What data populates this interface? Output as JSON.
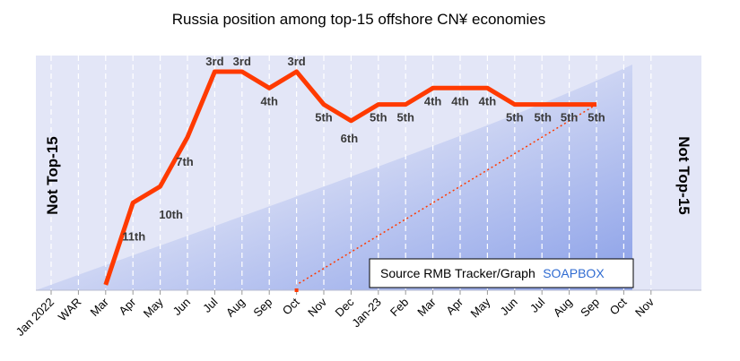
{
  "chart_data": {
    "type": "line",
    "title": "Russia position among top-15 offshore CN¥ economies",
    "categories": [
      "Jan 2022",
      "WAR",
      "Mar",
      "Apr",
      "May",
      "Jun",
      "Jul",
      "Aug",
      "Sep",
      "Oct",
      "Nov",
      "Dec",
      "Jan-23",
      "Feb",
      "Mar",
      "Apr",
      "May",
      "Jun",
      "Jul",
      "Aug",
      "Sep",
      "Oct",
      "Nov"
    ],
    "y_axis": {
      "reversed": true,
      "range": [
        1,
        16
      ],
      "note_out_of_range": "Not Top-15"
    },
    "series": [
      {
        "color": "#ff3a00",
        "points": [
          {
            "x": "Mar",
            "rank": 16,
            "label": ""
          },
          {
            "x": "Apr",
            "rank": 11,
            "label": "11th"
          },
          {
            "x": "May",
            "rank": 10,
            "label": "10th"
          },
          {
            "x": "Jun",
            "rank": 7,
            "label": "7th"
          },
          {
            "x": "Jul",
            "rank": 3,
            "label": "3rd"
          },
          {
            "x": "Aug",
            "rank": 3,
            "label": "3rd"
          },
          {
            "x": "Sep",
            "rank": 4,
            "label": "4th"
          },
          {
            "x": "Oct",
            "rank": 3,
            "label": "3rd"
          },
          {
            "x": "Nov",
            "rank": 5,
            "label": "5th"
          },
          {
            "x": "Dec",
            "rank": 6,
            "label": "6th"
          },
          {
            "x": "Jan-23",
            "rank": 5,
            "label": "5th"
          },
          {
            "x": "Feb",
            "rank": 5,
            "label": "5th"
          },
          {
            "x": "Mar",
            "rank": 4,
            "label": "4th"
          },
          {
            "x": "Apr",
            "rank": 4,
            "label": "4th"
          },
          {
            "x": "May",
            "rank": 4,
            "label": "4th"
          },
          {
            "x": "Jun",
            "rank": 5,
            "label": "5th"
          },
          {
            "x": "Jul",
            "rank": 5,
            "label": "5th"
          },
          {
            "x": "Aug",
            "rank": 5,
            "label": "5th"
          },
          {
            "x": "Sep",
            "rank": 5,
            "label": "5th"
          }
        ],
        "projection": {
          "x": "Oct",
          "rank": 16,
          "style": "dotted"
        }
      }
    ],
    "side_labels": {
      "left": "Not Top-15",
      "right": "Not Top-15"
    },
    "source": {
      "prefix": "Source RMB Tracker/Graph",
      "brand": "SOAPBOX"
    },
    "grid": "vertical dashed",
    "colors": {
      "line": "#ff3a00",
      "plot_bg": "#e3e6f7",
      "gradient": "#7f97e6",
      "brand": "#2f6bd1"
    }
  }
}
